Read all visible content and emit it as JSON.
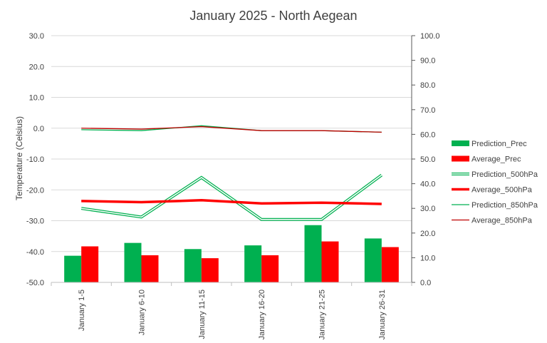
{
  "chart_data": {
    "type": "bar",
    "title": "January 2025 - North Aegean",
    "ylabel": "Temperature (Celsius)",
    "y2label": "",
    "categories": [
      "January 1-5",
      "January 6-10",
      "January 11-15",
      "January 16-20",
      "January 21-25",
      "January 26-31"
    ],
    "ylim": [
      -50,
      30
    ],
    "y2lim": [
      0,
      100
    ],
    "yticks": [
      "30.0",
      "20.0",
      "10.0",
      "0.0",
      "-10.0",
      "-20.0",
      "-30.0",
      "-40.0",
      "-50.0"
    ],
    "y2ticks": [
      "100.0",
      "90.0",
      "80.0",
      "70.0",
      "60.0",
      "50.0",
      "40.0",
      "30.0",
      "20.0",
      "10.0",
      "0.0"
    ],
    "grid": true,
    "legend_position": "right",
    "series": [
      {
        "name": "Prediction_Prec",
        "kind": "bar",
        "axis": "right",
        "color": "#00b050",
        "values": [
          10.8,
          16.0,
          13.5,
          15.0,
          23.2,
          17.8
        ]
      },
      {
        "name": "Average_Prec",
        "kind": "bar",
        "axis": "right",
        "color": "#ff0000",
        "values": [
          14.6,
          11.0,
          9.8,
          11.0,
          16.6,
          14.3
        ]
      },
      {
        "name": "Prediction_500hPa",
        "kind": "line",
        "style": "double",
        "axis": "right",
        "color": "#00b050",
        "values": [
          30.0,
          26.5,
          42.5,
          25.5,
          25.5,
          43.5
        ]
      },
      {
        "name": "Average_500hPa",
        "kind": "line",
        "style": "thick",
        "axis": "right",
        "color": "#ff0000",
        "values": [
          33.0,
          32.5,
          33.3,
          32.0,
          32.3,
          31.8
        ]
      },
      {
        "name": "Prediction_850hPa",
        "kind": "line",
        "style": "thin",
        "axis": "left",
        "color": "#00b050",
        "values": [
          -0.5,
          -0.8,
          0.8,
          -0.8,
          -0.8,
          -1.3
        ]
      },
      {
        "name": "Average_850hPa",
        "kind": "line",
        "style": "thin",
        "axis": "left",
        "color": "#c00000",
        "values": [
          0.0,
          -0.3,
          0.5,
          -0.8,
          -0.8,
          -1.3
        ]
      }
    ]
  }
}
